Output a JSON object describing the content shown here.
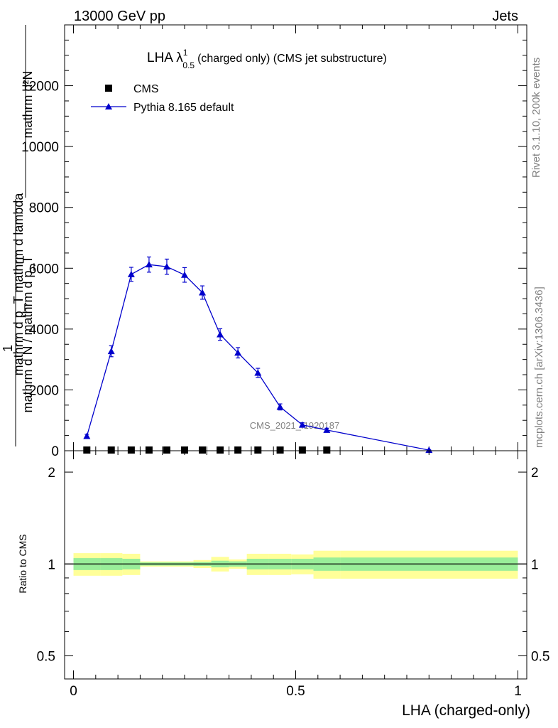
{
  "header": {
    "left": "13000 GeV pp",
    "right": "Jets"
  },
  "side_labels": {
    "rivet": "Rivet 3.1.10,  200k events",
    "mcplots": "mcplots.cern.ch [arXiv:1306.3436]"
  },
  "watermark": "CMS_2021_I1920187",
  "chart_data": [
    {
      "type": "scatter",
      "panel": "main",
      "title": "LHA λ",
      "title_sup": "1",
      "title_sub": "0.5",
      "title_rest": "(charged only) (CMS jet substructure)",
      "ylabel_num": "mathrm d²N",
      "ylabel_den": "mathrm d p_T mathrm d lambda",
      "ylabel_prefix": "1",
      "ylabel_prefix_den": "mathrm d N / mathrm d p_T",
      "xlabel": "LHA (charged-only)",
      "xlim": [
        -0.02,
        1.02
      ],
      "ylim": [
        0,
        14000
      ],
      "yticks": [
        0,
        2000,
        4000,
        6000,
        8000,
        10000,
        12000
      ],
      "ytick_labels": [
        "0",
        "2000",
        "4000",
        "6000",
        "8000",
        "10000",
        "12000"
      ],
      "legend": [
        {
          "name": "CMS",
          "color": "#000000",
          "marker": "square"
        },
        {
          "name": "Pythia 8.165 default",
          "color": "#0000cc",
          "marker": "triangle"
        }
      ],
      "series": [
        {
          "name": "CMS",
          "x": [
            0.03,
            0.085,
            0.13,
            0.17,
            0.21,
            0.25,
            0.29,
            0.33,
            0.37,
            0.415,
            0.465,
            0.515,
            0.57
          ],
          "y": [
            0,
            0,
            0,
            0,
            0,
            0,
            0,
            0,
            0,
            0,
            0,
            0,
            0
          ]
        },
        {
          "name": "Pythia 8.165 default",
          "x": [
            0.03,
            0.085,
            0.13,
            0.17,
            0.21,
            0.25,
            0.29,
            0.33,
            0.37,
            0.415,
            0.465,
            0.515,
            0.57,
            0.8
          ],
          "y": [
            480,
            3270,
            5800,
            6120,
            6050,
            5780,
            5200,
            3820,
            3220,
            2560,
            1440,
            850,
            680,
            20
          ],
          "err": [
            60,
            180,
            230,
            250,
            250,
            240,
            220,
            190,
            170,
            150,
            100,
            70,
            60,
            10
          ]
        }
      ]
    },
    {
      "type": "area",
      "panel": "ratio",
      "ylabel": "Ratio to CMS",
      "xlabel": "LHA (charged-only)",
      "xlim": [
        -0.02,
        1.02
      ],
      "ylim": [
        0.42,
        2.35
      ],
      "yscale": "log",
      "yticks": [
        0.5,
        1,
        2
      ],
      "ytick_labels": [
        "0.5",
        "1",
        "2"
      ],
      "xticks": [
        0,
        0.5,
        1
      ],
      "xtick_labels": [
        "0",
        "0.5",
        "1"
      ],
      "bins": [
        {
          "lo": 0.0,
          "hi": 0.06,
          "stat": 0.045,
          "tot": 0.085
        },
        {
          "lo": 0.06,
          "hi": 0.11,
          "stat": 0.045,
          "tot": 0.085
        },
        {
          "lo": 0.11,
          "hi": 0.15,
          "stat": 0.04,
          "tot": 0.08
        },
        {
          "lo": 0.15,
          "hi": 0.19,
          "stat": 0.012,
          "tot": 0.02
        },
        {
          "lo": 0.19,
          "hi": 0.23,
          "stat": 0.012,
          "tot": 0.02
        },
        {
          "lo": 0.23,
          "hi": 0.27,
          "stat": 0.012,
          "tot": 0.02
        },
        {
          "lo": 0.27,
          "hi": 0.31,
          "stat": 0.015,
          "tot": 0.03
        },
        {
          "lo": 0.31,
          "hi": 0.35,
          "stat": 0.025,
          "tot": 0.055
        },
        {
          "lo": 0.35,
          "hi": 0.39,
          "stat": 0.02,
          "tot": 0.035
        },
        {
          "lo": 0.39,
          "hi": 0.44,
          "stat": 0.04,
          "tot": 0.08
        },
        {
          "lo": 0.44,
          "hi": 0.49,
          "stat": 0.04,
          "tot": 0.08
        },
        {
          "lo": 0.49,
          "hi": 0.54,
          "stat": 0.04,
          "tot": 0.075
        },
        {
          "lo": 0.54,
          "hi": 0.6,
          "stat": 0.05,
          "tot": 0.105
        },
        {
          "lo": 0.6,
          "hi": 1.0,
          "stat": 0.05,
          "tot": 0.105
        }
      ]
    }
  ]
}
